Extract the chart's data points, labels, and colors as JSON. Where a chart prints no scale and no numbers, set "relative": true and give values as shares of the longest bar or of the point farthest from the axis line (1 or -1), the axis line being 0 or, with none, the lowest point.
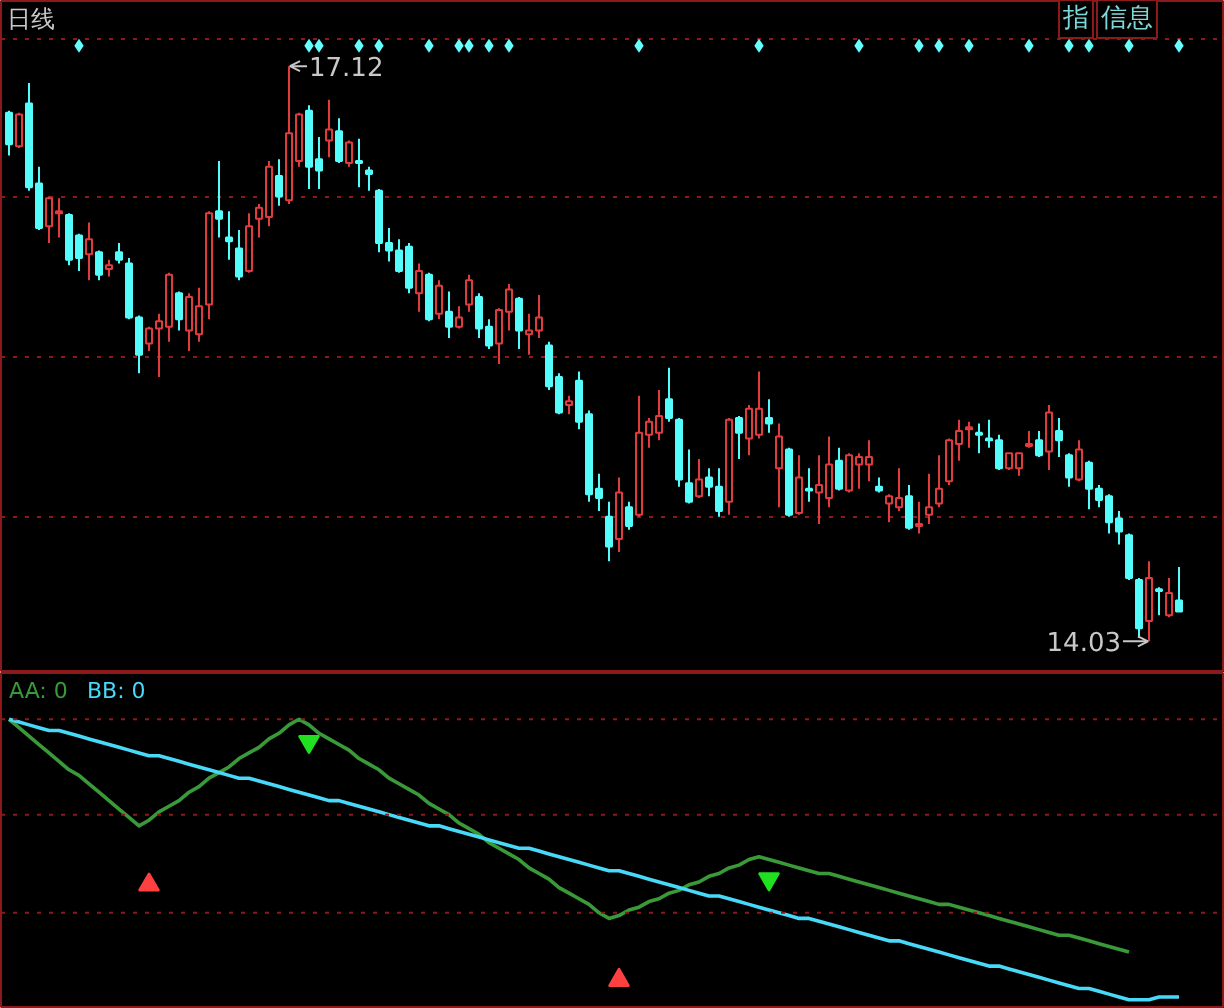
{
  "chart_data": [
    {
      "type": "candlestick",
      "title": "日线",
      "categories": [
        null,
        null,
        null,
        null,
        null,
        null,
        null,
        null,
        null,
        null,
        null,
        null,
        null,
        null,
        null,
        null,
        null,
        null,
        null,
        null,
        null,
        null,
        null,
        null,
        null,
        null,
        null,
        null,
        null,
        null,
        null,
        null,
        null,
        null,
        null,
        null,
        null,
        null,
        null,
        null,
        null,
        null,
        null,
        null,
        null,
        null,
        null,
        null,
        null,
        null,
        null,
        null,
        null,
        null,
        null,
        null,
        null,
        null,
        null,
        null,
        null,
        null,
        null,
        null,
        null,
        null,
        null,
        null,
        null,
        null,
        null,
        null,
        null,
        null,
        null,
        null,
        null,
        null,
        null,
        null,
        null,
        null,
        null,
        null,
        null,
        null,
        null,
        null,
        null,
        null,
        null,
        null,
        null,
        null,
        null,
        null,
        null,
        null,
        null,
        null,
        null,
        null,
        null,
        null,
        null,
        null,
        null,
        null,
        null,
        null,
        null,
        null,
        null,
        null,
        null,
        null,
        null,
        null
      ],
      "ohlc": [
        [
          16.87,
          16.88,
          16.64,
          16.7
        ],
        [
          16.69,
          16.87,
          16.68,
          16.86
        ],
        [
          16.92,
          17.03,
          16.45,
          16.47
        ],
        [
          16.49,
          16.58,
          16.24,
          16.25
        ],
        [
          16.26,
          16.42,
          16.17,
          16.41
        ],
        [
          16.33,
          16.41,
          16.2,
          16.34
        ],
        [
          16.32,
          16.33,
          16.05,
          16.08
        ],
        [
          16.21,
          16.22,
          16.02,
          16.09
        ],
        [
          16.11,
          16.28,
          15.97,
          16.19
        ],
        [
          16.12,
          16.13,
          15.97,
          16.0
        ],
        [
          16.03,
          16.08,
          15.99,
          16.05
        ],
        [
          16.12,
          16.17,
          16.06,
          16.08
        ],
        [
          16.06,
          16.09,
          15.76,
          15.77
        ],
        [
          15.77,
          15.78,
          15.47,
          15.57
        ],
        [
          15.63,
          15.72,
          15.59,
          15.71
        ],
        [
          15.71,
          15.79,
          15.45,
          15.75
        ],
        [
          15.72,
          16.01,
          15.64,
          16.0
        ],
        [
          15.9,
          15.91,
          15.7,
          15.76
        ],
        [
          15.7,
          15.9,
          15.59,
          15.88
        ],
        [
          15.68,
          15.93,
          15.64,
          15.83
        ],
        [
          15.84,
          16.34,
          15.76,
          16.33
        ],
        [
          16.34,
          16.61,
          16.2,
          16.3
        ],
        [
          16.2,
          16.34,
          16.08,
          16.18
        ],
        [
          16.14,
          16.24,
          15.97,
          15.99
        ],
        [
          16.02,
          16.33,
          16.01,
          16.26
        ],
        [
          16.3,
          16.38,
          16.2,
          16.36
        ],
        [
          16.31,
          16.61,
          16.26,
          16.58
        ],
        [
          16.53,
          16.62,
          16.37,
          16.42
        ],
        [
          16.4,
          17.12,
          16.38,
          16.76
        ],
        [
          16.61,
          16.87,
          16.58,
          16.86
        ],
        [
          16.88,
          16.91,
          16.46,
          16.58
        ],
        [
          16.62,
          16.74,
          16.46,
          16.56
        ],
        [
          16.72,
          16.94,
          16.63,
          16.78
        ],
        [
          16.77,
          16.84,
          16.6,
          16.61
        ],
        [
          16.6,
          16.72,
          16.58,
          16.71
        ],
        [
          16.61,
          16.73,
          16.47,
          16.6
        ],
        [
          16.56,
          16.58,
          16.45,
          16.54
        ],
        [
          16.45,
          16.46,
          16.12,
          16.17
        ],
        [
          16.17,
          16.25,
          16.07,
          16.13
        ],
        [
          16.13,
          16.19,
          16.01,
          16.02
        ],
        [
          16.15,
          16.17,
          15.9,
          15.93
        ],
        [
          15.9,
          16.06,
          15.8,
          16.02
        ],
        [
          16.0,
          16.01,
          15.75,
          15.76
        ],
        [
          15.79,
          15.97,
          15.76,
          15.94
        ],
        [
          15.8,
          15.91,
          15.66,
          15.72
        ],
        [
          15.72,
          15.83,
          15.71,
          15.77
        ],
        [
          15.84,
          16.0,
          15.8,
          15.97
        ],
        [
          15.88,
          15.9,
          15.66,
          15.71
        ],
        [
          15.72,
          15.76,
          15.6,
          15.62
        ],
        [
          15.63,
          15.82,
          15.52,
          15.81
        ],
        [
          15.8,
          15.95,
          15.7,
          15.92
        ],
        [
          15.87,
          15.88,
          15.6,
          15.7
        ],
        [
          15.68,
          15.79,
          15.57,
          15.7
        ],
        [
          15.7,
          15.89,
          15.66,
          15.77
        ],
        [
          15.62,
          15.64,
          15.38,
          15.4
        ],
        [
          15.45,
          15.47,
          15.25,
          15.26
        ],
        [
          15.3,
          15.35,
          15.25,
          15.32
        ],
        [
          15.43,
          15.48,
          15.17,
          15.21
        ],
        [
          15.25,
          15.27,
          14.78,
          14.82
        ],
        [
          14.85,
          14.93,
          14.73,
          14.8
        ],
        [
          14.7,
          14.78,
          14.46,
          14.54
        ],
        [
          14.58,
          14.91,
          14.51,
          14.83
        ],
        [
          14.75,
          14.78,
          14.63,
          14.65
        ],
        [
          14.71,
          15.35,
          14.7,
          15.15
        ],
        [
          15.14,
          15.23,
          15.07,
          15.21
        ],
        [
          15.15,
          15.38,
          15.11,
          15.24
        ],
        [
          15.33,
          15.5,
          15.21,
          15.23
        ],
        [
          15.22,
          15.23,
          14.86,
          14.9
        ],
        [
          14.88,
          15.06,
          14.77,
          14.78
        ],
        [
          14.81,
          15.01,
          14.8,
          14.9
        ],
        [
          14.91,
          14.96,
          14.81,
          14.86
        ],
        [
          14.86,
          14.96,
          14.7,
          14.73
        ],
        [
          14.78,
          15.23,
          14.71,
          15.22
        ],
        [
          15.23,
          15.24,
          15.01,
          15.15
        ],
        [
          15.12,
          15.3,
          15.03,
          15.28
        ],
        [
          15.14,
          15.48,
          15.12,
          15.28
        ],
        [
          15.23,
          15.33,
          15.15,
          15.2
        ],
        [
          14.96,
          15.2,
          14.75,
          15.13
        ],
        [
          15.06,
          15.07,
          14.7,
          14.71
        ],
        [
          14.72,
          15.03,
          14.71,
          14.91
        ],
        [
          14.85,
          14.96,
          14.78,
          14.84
        ],
        [
          14.83,
          15.03,
          14.66,
          14.87
        ],
        [
          14.8,
          15.13,
          14.75,
          14.98
        ],
        [
          15.0,
          15.07,
          14.84,
          14.85
        ],
        [
          14.84,
          15.04,
          14.83,
          15.03
        ],
        [
          14.98,
          15.04,
          14.85,
          15.02
        ],
        [
          14.98,
          15.11,
          14.89,
          15.02
        ],
        [
          14.86,
          14.91,
          14.83,
          14.84
        ],
        [
          14.77,
          14.82,
          14.67,
          14.81
        ],
        [
          14.75,
          14.96,
          14.73,
          14.8
        ],
        [
          14.81,
          14.87,
          14.63,
          14.64
        ],
        [
          14.65,
          14.78,
          14.61,
          14.66
        ],
        [
          14.71,
          14.93,
          14.66,
          14.75
        ],
        [
          14.77,
          15.03,
          14.75,
          14.85
        ],
        [
          14.89,
          15.12,
          14.87,
          15.11
        ],
        [
          15.09,
          15.22,
          15.0,
          15.16
        ],
        [
          15.17,
          15.21,
          15.07,
          15.18
        ],
        [
          15.15,
          15.2,
          15.04,
          15.14
        ],
        [
          15.12,
          15.22,
          15.07,
          15.11
        ],
        [
          15.11,
          15.14,
          14.95,
          14.96
        ],
        [
          14.96,
          15.04,
          14.95,
          15.04
        ],
        [
          14.96,
          15.04,
          14.92,
          15.04
        ],
        [
          15.08,
          15.16,
          15.07,
          15.09
        ],
        [
          15.11,
          15.16,
          15.02,
          15.03
        ],
        [
          15.05,
          15.3,
          14.95,
          15.26
        ],
        [
          15.16,
          15.23,
          15.02,
          15.11
        ],
        [
          15.03,
          15.04,
          14.86,
          14.91
        ],
        [
          14.9,
          15.11,
          14.89,
          15.06
        ],
        [
          14.99,
          15.0,
          14.74,
          14.85
        ],
        [
          14.85,
          14.87,
          14.75,
          14.79
        ],
        [
          14.81,
          14.82,
          14.61,
          14.67
        ],
        [
          14.69,
          14.73,
          14.55,
          14.62
        ],
        [
          14.6,
          14.61,
          14.36,
          14.37
        ],
        [
          14.36,
          14.37,
          14.05,
          14.1
        ],
        [
          14.14,
          14.46,
          14.03,
          14.37
        ],
        [
          14.31,
          14.32,
          14.17,
          14.3
        ],
        [
          14.17,
          14.37,
          14.16,
          14.29
        ],
        [
          14.25,
          14.43,
          14.19,
          14.19
        ]
      ],
      "colors": [
        "#54fcfc",
        "#e03c3c",
        "#54fcfc",
        "#54fcfc",
        "#e03c3c",
        "#e03c3c",
        "#54fcfc",
        "#54fcfc",
        "#e03c3c",
        "#54fcfc",
        "#e03c3c",
        "#54fcfc",
        "#54fcfc",
        "#54fcfc",
        "#e03c3c",
        "#e03c3c",
        "#e03c3c",
        "#54fcfc",
        "#e03c3c",
        "#e03c3c",
        "#e03c3c",
        "#54fcfc",
        "#54fcfc",
        "#54fcfc",
        "#e03c3c",
        "#e03c3c",
        "#e03c3c",
        "#54fcfc",
        "#e03c3c",
        "#e03c3c",
        "#54fcfc",
        "#54fcfc",
        "#e03c3c",
        "#54fcfc",
        "#e03c3c",
        "#54fcfc",
        "#54fcfc",
        "#54fcfc",
        "#54fcfc",
        "#54fcfc",
        "#54fcfc",
        "#e03c3c",
        "#54fcfc",
        "#e03c3c",
        "#54fcfc",
        "#e03c3c",
        "#e03c3c",
        "#54fcfc",
        "#54fcfc",
        "#e03c3c",
        "#e03c3c",
        "#54fcfc",
        "#e03c3c",
        "#e03c3c",
        "#54fcfc",
        "#54fcfc",
        "#e03c3c",
        "#54fcfc",
        "#54fcfc",
        "#54fcfc",
        "#54fcfc",
        "#e03c3c",
        "#54fcfc",
        "#e03c3c",
        "#e03c3c",
        "#e03c3c",
        "#54fcfc",
        "#54fcfc",
        "#54fcfc",
        "#e03c3c",
        "#54fcfc",
        "#54fcfc",
        "#e03c3c",
        "#54fcfc",
        "#e03c3c",
        "#e03c3c",
        "#54fcfc",
        "#e03c3c",
        "#54fcfc",
        "#e03c3c",
        "#54fcfc",
        "#e03c3c",
        "#e03c3c",
        "#54fcfc",
        "#e03c3c",
        "#e03c3c",
        "#e03c3c",
        "#54fcfc",
        "#e03c3c",
        "#e03c3c",
        "#54fcfc",
        "#e03c3c",
        "#e03c3c",
        "#e03c3c",
        "#e03c3c",
        "#e03c3c",
        "#e03c3c",
        "#54fcfc",
        "#54fcfc",
        "#54fcfc",
        "#e03c3c",
        "#e03c3c",
        "#e03c3c",
        "#54fcfc",
        "#e03c3c",
        "#54fcfc",
        "#54fcfc",
        "#e03c3c",
        "#54fcfc",
        "#54fcfc",
        "#54fcfc",
        "#54fcfc",
        "#54fcfc",
        "#54fcfc",
        "#e03c3c",
        "#54fcfc",
        "#e03c3c",
        "#54fcfc"
      ],
      "ylim": [
        13.86,
        17.47
      ],
      "yticks": [
        {
          "value": 14.7,
          "label": null
        },
        {
          "value": 15.56,
          "label": null
        },
        {
          "value": 16.42,
          "label": null
        },
        {
          "value": 17.27,
          "label": null
        }
      ],
      "grid": "y",
      "annotations": [
        "17.12",
        "14.03",
        "指",
        "信息"
      ],
      "series": [
        {
          "type": "scatter",
          "marker": "diamond",
          "color": "#66ffff",
          "values": [
            null,
            null,
            null,
            null,
            null,
            null,
            null,
            17.23,
            null,
            null,
            null,
            null,
            null,
            null,
            null,
            null,
            null,
            null,
            null,
            null,
            null,
            null,
            null,
            null,
            null,
            null,
            null,
            null,
            null,
            null,
            17.23,
            17.23,
            null,
            null,
            null,
            17.23,
            null,
            17.23,
            null,
            null,
            null,
            null,
            17.23,
            null,
            null,
            17.23,
            17.23,
            null,
            17.23,
            null,
            17.23,
            null,
            null,
            null,
            null,
            null,
            null,
            null,
            null,
            null,
            null,
            null,
            null,
            17.23,
            null,
            null,
            null,
            null,
            null,
            null,
            null,
            null,
            null,
            null,
            null,
            17.23,
            null,
            null,
            null,
            null,
            null,
            null,
            null,
            null,
            null,
            17.23,
            null,
            null,
            null,
            null,
            null,
            17.23,
            null,
            17.23,
            null,
            null,
            17.23,
            null,
            null,
            null,
            null,
            null,
            17.23,
            null,
            null,
            null,
            17.23,
            null,
            17.23,
            null,
            null,
            null,
            17.23,
            null,
            null,
            null,
            null,
            17.23
          ]
        }
      ]
    },
    {
      "type": "line",
      "relative": true,
      "categories": [
        null,
        null,
        null,
        null,
        null,
        null,
        null,
        null,
        null,
        null,
        null,
        null,
        null,
        null,
        null,
        null,
        null,
        null,
        null,
        null,
        null,
        null,
        null,
        null,
        null,
        null,
        null,
        null,
        null,
        null,
        null,
        null,
        null,
        null,
        null,
        null,
        null,
        null,
        null,
        null,
        null,
        null,
        null,
        null,
        null,
        null,
        null,
        null,
        null,
        null,
        null,
        null,
        null,
        null,
        null,
        null,
        null,
        null,
        null,
        null,
        null,
        null,
        null,
        null,
        null,
        null,
        null,
        null,
        null,
        null,
        null,
        null,
        null,
        null,
        null,
        null,
        null,
        null,
        null,
        null,
        null,
        null,
        null,
        null,
        null,
        null,
        null,
        null,
        null,
        null,
        null,
        null,
        null,
        null,
        null,
        null,
        null,
        null,
        null,
        null,
        null,
        null,
        null,
        null,
        null,
        null,
        null,
        null,
        null,
        null,
        null,
        null,
        null,
        null,
        null,
        null,
        null,
        null
      ],
      "series": [
        {
          "name": "AA: 0",
          "color": "#3a9a3a",
          "values": [
            1,
            0.97,
            0.94,
            0.91,
            0.88,
            0.85,
            0.82,
            0.8,
            0.77,
            0.74,
            0.71,
            0.68,
            0.65,
            0.62,
            0.64,
            0.67,
            0.69,
            0.71,
            0.74,
            0.76,
            0.79,
            0.81,
            0.83,
            0.86,
            0.88,
            0.9,
            0.93,
            0.95,
            0.98,
            1,
            0.98,
            0.95,
            0.93,
            0.91,
            0.89,
            0.86,
            0.84,
            0.82,
            0.79,
            0.77,
            0.75,
            0.73,
            0.7,
            0.68,
            0.66,
            0.63,
            0.61,
            0.59,
            0.56,
            0.54,
            0.52,
            0.5,
            0.47,
            0.45,
            0.43,
            0.4,
            0.38,
            0.36,
            0.34,
            0.31,
            0.29,
            0.3,
            0.32,
            0.33,
            0.35,
            0.36,
            0.38,
            0.39,
            0.41,
            0.42,
            0.44,
            0.45,
            0.47,
            0.48,
            0.5,
            0.51,
            0.5,
            0.49,
            0.48,
            0.47,
            0.46,
            0.45,
            0.45,
            0.44,
            0.43,
            0.42,
            0.41,
            0.4,
            0.39,
            0.38,
            0.37,
            0.36,
            0.35,
            0.34,
            0.34,
            0.33,
            0.32,
            0.31,
            0.3,
            0.29,
            0.28,
            0.27,
            0.26,
            0.25,
            0.24,
            0.23,
            0.23,
            0.22,
            0.21,
            0.2,
            0.19,
            0.18,
            0.17,
            null,
            null,
            null,
            null,
            null
          ]
        },
        {
          "name": "BB: 0",
          "color": "#48d8f8",
          "values": [
            1,
            0.99,
            0.98,
            0.97,
            0.96,
            0.96,
            0.95,
            0.94,
            0.93,
            0.92,
            0.91,
            0.9,
            0.89,
            0.88,
            0.87,
            0.87,
            0.86,
            0.85,
            0.84,
            0.83,
            0.82,
            0.81,
            0.8,
            0.79,
            0.79,
            0.78,
            0.77,
            0.76,
            0.75,
            0.74,
            0.73,
            0.72,
            0.71,
            0.71,
            0.7,
            0.69,
            0.68,
            0.67,
            0.66,
            0.65,
            0.64,
            0.63,
            0.62,
            0.62,
            0.61,
            0.6,
            0.59,
            0.58,
            0.57,
            0.56,
            0.55,
            0.54,
            0.54,
            0.53,
            0.52,
            0.51,
            0.5,
            0.49,
            0.48,
            0.47,
            0.46,
            0.46,
            0.45,
            0.44,
            0.43,
            0.42,
            0.41,
            0.4,
            0.39,
            0.38,
            0.37,
            0.37,
            0.36,
            0.35,
            0.34,
            0.33,
            0.32,
            0.31,
            0.3,
            0.29,
            0.29,
            0.28,
            0.27,
            0.26,
            0.25,
            0.24,
            0.23,
            0.22,
            0.21,
            0.21,
            0.2,
            0.19,
            0.18,
            0.17,
            0.16,
            0.15,
            0.14,
            0.13,
            0.12,
            0.12,
            0.11,
            0.1,
            0.09,
            0.08,
            0.07,
            0.06,
            0.05,
            0.04,
            0.04,
            0.03,
            0.02,
            0.01,
            0,
            0,
            0,
            0.01,
            0.01,
            0.01
          ]
        },
        {
          "type": "scatter",
          "marker": "triangle",
          "color": "#ff4040",
          "values": [
            null,
            null,
            null,
            null,
            null,
            null,
            null,
            null,
            null,
            null,
            null,
            null,
            null,
            null,
            0.41,
            null,
            null,
            null,
            null,
            null,
            null,
            null,
            null,
            null,
            null,
            null,
            null,
            null,
            null,
            null,
            null,
            null,
            null,
            null,
            null,
            null,
            null,
            null,
            null,
            null,
            null,
            null,
            null,
            null,
            null,
            null,
            null,
            null,
            null,
            null,
            null,
            null,
            null,
            null,
            null,
            null,
            null,
            null,
            null,
            null,
            null,
            0.07,
            null,
            null,
            null,
            null,
            null,
            null,
            null,
            null,
            null,
            null,
            null,
            null,
            null,
            null,
            null,
            null,
            null,
            null,
            null,
            null,
            null,
            null,
            null,
            null,
            null,
            null,
            null,
            null,
            null,
            null,
            null,
            null,
            null,
            null,
            null,
            null,
            null,
            null,
            null,
            null,
            null,
            null,
            null,
            null,
            null,
            null,
            null,
            null,
            null,
            null,
            null,
            null,
            null,
            null,
            null,
            null
          ]
        },
        {
          "type": "scatter",
          "marker": "triangle",
          "color": "#20e020",
          "values": [
            null,
            null,
            null,
            null,
            null,
            null,
            null,
            null,
            null,
            null,
            null,
            null,
            null,
            null,
            null,
            null,
            null,
            null,
            null,
            null,
            null,
            null,
            null,
            null,
            null,
            null,
            null,
            null,
            null,
            null,
            0.92,
            null,
            null,
            null,
            null,
            null,
            null,
            null,
            null,
            null,
            null,
            null,
            null,
            null,
            null,
            null,
            null,
            null,
            null,
            null,
            null,
            null,
            null,
            null,
            null,
            null,
            null,
            null,
            null,
            null,
            null,
            null,
            null,
            null,
            null,
            null,
            null,
            null,
            null,
            null,
            null,
            null,
            null,
            null,
            null,
            null,
            0.43,
            null,
            null,
            null,
            null,
            null,
            null,
            null,
            null,
            null,
            null,
            null,
            null,
            null,
            null,
            null,
            null,
            null,
            null,
            null,
            null,
            null,
            null,
            null,
            null,
            null,
            null,
            null,
            null,
            null,
            null,
            null,
            null,
            null,
            null,
            null,
            null,
            null,
            null,
            null,
            null,
            null
          ]
        }
      ],
      "ref_lines": [
        {
          "axis": "y",
          "value": 1,
          "color": "#8c1a1a",
          "line_style": "dotted"
        },
        {
          "axis": "y",
          "value": 0.66,
          "color": "#8c1a1a",
          "line_style": "dotted"
        },
        {
          "axis": "y",
          "value": 0.31,
          "color": "#8c1a1a",
          "line_style": "dotted"
        }
      ],
      "legend": "top left"
    }
  ]
}
